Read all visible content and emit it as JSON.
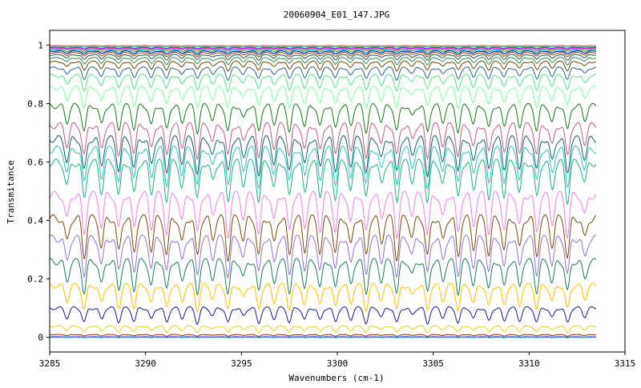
{
  "chart_data": {
    "type": "line",
    "title": "20060904_E01_147.JPG",
    "xlabel": "Wavenumbers (cm-1)",
    "ylabel": "Transmitance",
    "xlim": [
      3285,
      3315
    ],
    "ylim": [
      -0.05,
      1.05
    ],
    "x_ticks": [
      "3285",
      "3290",
      "3295",
      "3300",
      "3305",
      "3310",
      "3315"
    ],
    "y_ticks": [
      "0",
      "0.2",
      "0.4",
      "0.6",
      "0.8",
      "1"
    ],
    "x_data_range": [
      3285,
      3313.5
    ],
    "grid": false,
    "legend": "none",
    "absorption_lines_cm1": [
      3285.9,
      3286.8,
      3287.7,
      3288.6,
      3289.4,
      3290.3,
      3291.1,
      3291.9,
      3292.7,
      3293.5,
      3294.3,
      3295.1,
      3295.9,
      3296.7,
      3297.5,
      3298.3,
      3299.1,
      3299.9,
      3300.7,
      3301.5,
      3302.3,
      3303.1,
      3303.9,
      3304.7,
      3305.5,
      3306.3,
      3307.1,
      3307.9,
      3308.7,
      3309.5,
      3310.4,
      3311.2,
      3312.0,
      3312.9
    ],
    "series": [
      {
        "baseline": 0.998,
        "color": "#ff4040"
      },
      {
        "baseline": 0.995,
        "color": "#3cb371"
      },
      {
        "baseline": 0.992,
        "color": "#4040ff"
      },
      {
        "baseline": 0.99,
        "color": "#ff00ff"
      },
      {
        "baseline": 0.987,
        "color": "#a0a000"
      },
      {
        "baseline": 0.984,
        "color": "#00c0c0"
      },
      {
        "baseline": 0.98,
        "color": "#000080"
      },
      {
        "baseline": 0.975,
        "color": "#8b4513"
      },
      {
        "baseline": 0.968,
        "color": "#2f4f4f"
      },
      {
        "baseline": 0.958,
        "color": "#2e8b57"
      },
      {
        "baseline": 0.945,
        "color": "#6b4a00"
      },
      {
        "baseline": 0.925,
        "color": "#2f5f8f"
      },
      {
        "baseline": 0.9,
        "color": "#5adf8a"
      },
      {
        "baseline": 0.86,
        "color": "#80ff9f"
      },
      {
        "baseline": 0.8,
        "color": "#1a7a1a"
      },
      {
        "baseline": 0.735,
        "color": "#c06080"
      },
      {
        "baseline": 0.69,
        "color": "#1a6060"
      },
      {
        "baseline": 0.655,
        "color": "#30c0c0"
      },
      {
        "baseline": 0.61,
        "color": "#20b080"
      },
      {
        "baseline": 0.5,
        "color": "#ee82ee"
      },
      {
        "baseline": 0.42,
        "color": "#7a4a0a"
      },
      {
        "baseline": 0.35,
        "color": "#9370db"
      },
      {
        "baseline": 0.27,
        "color": "#1e7a5a"
      },
      {
        "baseline": 0.185,
        "color": "#ffc000"
      },
      {
        "baseline": 0.105,
        "color": "#1a1a8c"
      },
      {
        "baseline": 0.04,
        "color": "#e0d020"
      },
      {
        "baseline": 0.01,
        "color": "#7a3a00"
      },
      {
        "baseline": 0.002,
        "color": "#0000ff"
      },
      {
        "baseline": 0.0,
        "color": "#20c0c0"
      }
    ]
  }
}
